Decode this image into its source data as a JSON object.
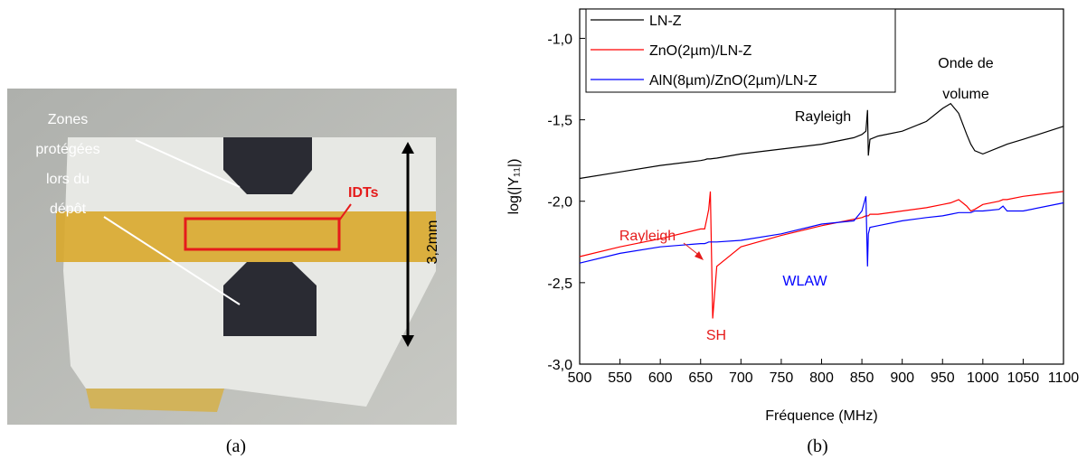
{
  "panel_a": {
    "zones_label": [
      "Zones",
      "protégées",
      "lors du",
      "dépôt"
    ],
    "idts_label": "IDTs",
    "scale_label": "3,2mm"
  },
  "captions": [
    "(a)",
    "(b)"
  ],
  "chart_data": {
    "type": "line",
    "xlabel": "Fréquence (MHz)",
    "ylabel": "log(|Y₁₁|)",
    "x": [
      500,
      550,
      600,
      650,
      655,
      658,
      660,
      662,
      665,
      670,
      700,
      750,
      800,
      840,
      850,
      855,
      857,
      858,
      860,
      870,
      900,
      930,
      950,
      960,
      970,
      980,
      985,
      990,
      1000,
      1020,
      1025,
      1030,
      1050,
      1100
    ],
    "series": [
      {
        "name": "LN-Z",
        "color": "#000000",
        "values": [
          -1.86,
          -1.82,
          -1.78,
          -1.75,
          -1.745,
          -1.74,
          -1.74,
          -1.74,
          -1.738,
          -1.735,
          -1.71,
          -1.68,
          -1.65,
          -1.61,
          -1.59,
          -1.57,
          -1.44,
          -1.72,
          -1.62,
          -1.6,
          -1.57,
          -1.51,
          -1.43,
          -1.4,
          -1.46,
          -1.59,
          -1.65,
          -1.69,
          -1.71,
          -1.67,
          -1.66,
          -1.65,
          -1.62,
          -1.54
        ]
      },
      {
        "name": "ZnO(2µm)/LN-Z",
        "color": "#ff0000",
        "values": [
          -2.34,
          -2.28,
          -2.23,
          -2.17,
          -2.17,
          -2.1,
          -2.05,
          -1.94,
          -2.72,
          -2.4,
          -2.28,
          -2.21,
          -2.15,
          -2.11,
          -2.1,
          -2.09,
          -2.09,
          -2.09,
          -2.08,
          -2.08,
          -2.06,
          -2.04,
          -2.02,
          -2.01,
          -1.99,
          -2.03,
          -2.06,
          -2.05,
          -2.02,
          -2.0,
          -1.99,
          -1.99,
          -1.97,
          -1.94
        ]
      },
      {
        "name": "AlN(8µm)/ZnO(2µm)/LN-Z",
        "color": "#0000ff",
        "values": [
          -2.38,
          -2.32,
          -2.28,
          -2.26,
          -2.26,
          -2.255,
          -2.25,
          -2.25,
          -2.25,
          -2.25,
          -2.24,
          -2.2,
          -2.14,
          -2.12,
          -2.06,
          -1.97,
          -2.4,
          -2.2,
          -2.16,
          -2.15,
          -2.12,
          -2.1,
          -2.09,
          -2.08,
          -2.07,
          -2.07,
          -2.07,
          -2.06,
          -2.06,
          -2.05,
          -2.03,
          -2.06,
          -2.06,
          -2.01
        ]
      }
    ],
    "xlim": [
      500,
      1100
    ],
    "xticks": [
      500,
      550,
      600,
      650,
      700,
      750,
      800,
      850,
      900,
      950,
      1000,
      1050,
      1100
    ],
    "ylim": [
      -3.0,
      -0.82
    ],
    "yticks": [
      {
        "value": -3.0,
        "label": "-3,0"
      },
      {
        "value": -2.5,
        "label": "-2,5"
      },
      {
        "value": -2.0,
        "label": "-2,0"
      },
      {
        "value": -1.5,
        "label": "-1,5"
      },
      {
        "value": -1.0,
        "label": "-1,0"
      }
    ],
    "legend": "upper left",
    "grid": false,
    "annotations": [
      "Rayleigh",
      "Onde de",
      "volume",
      "Rayleigh",
      "SH",
      "WLAW"
    ]
  }
}
